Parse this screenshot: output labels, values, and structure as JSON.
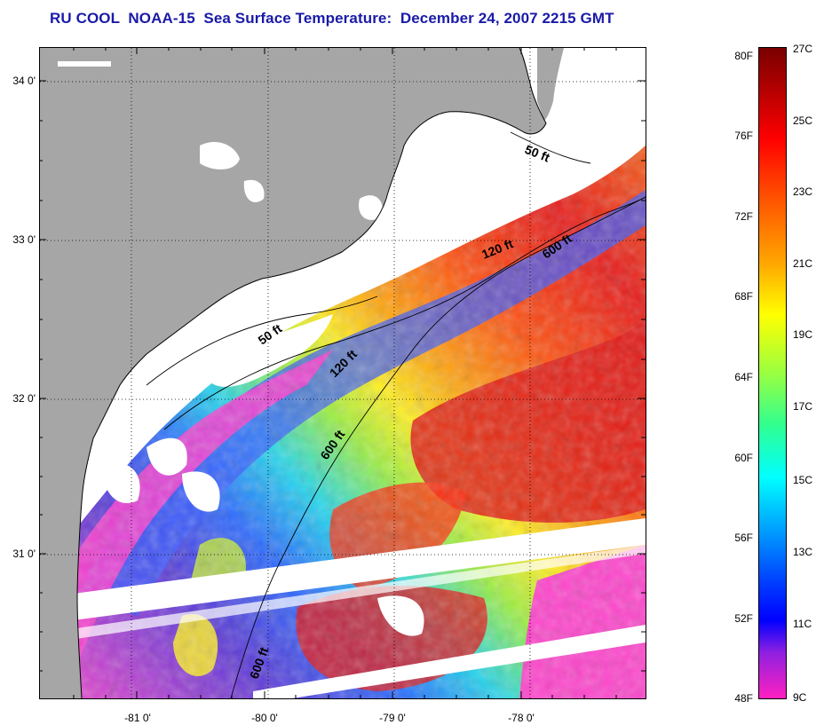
{
  "title": "RU COOL  NOAA-15  Sea Surface Temperature:  December 24, 2007 2215 GMT",
  "lat_ticks": [
    "34 0'",
    "33 0'",
    "32 0'",
    "31 0'"
  ],
  "lon_ticks": [
    "-81 0'",
    "-80 0'",
    "-79 0'",
    "-78 0'"
  ],
  "contour_labels": [
    "50 ft",
    "50 ft",
    "120 ft",
    "120 ft",
    "600 ft",
    "600 ft",
    "600 ft"
  ],
  "colorbar": {
    "fahrenheit": [
      "80F",
      "76F",
      "72F",
      "68F",
      "64F",
      "60F",
      "56F",
      "52F",
      "48F"
    ],
    "celsius": [
      "27C",
      "25C",
      "23C",
      "21C",
      "19C",
      "17C",
      "15C",
      "13C",
      "11C",
      "9C"
    ]
  },
  "colors": {
    "land": "#a6a6a6",
    "cloud_mask": "#ffffff",
    "coast": "#000000",
    "title": "#1a1aa8"
  }
}
